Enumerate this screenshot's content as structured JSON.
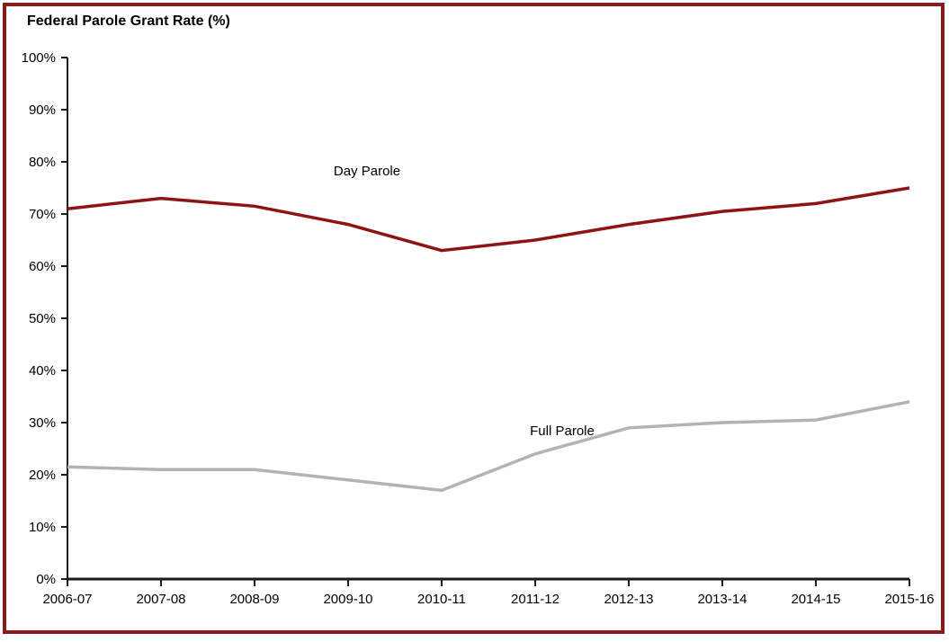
{
  "title": "Federal Parole Grant Rate (%)",
  "colors": {
    "frame_border": "#8B1A1A",
    "axis": "#1a1a1a",
    "text": "#000000",
    "day_parole_line": "#8E1414",
    "full_parole_line": "#B3B3B3"
  },
  "chart_data": {
    "type": "line",
    "title": "Federal Parole Grant Rate (%)",
    "xlabel": "",
    "ylabel": "Federal Parole Grant Rate (%)",
    "categories": [
      "2006-07",
      "2007-08",
      "2008-09",
      "2009-10",
      "2010-11",
      "2011-12",
      "2012-13",
      "2013-14",
      "2014-15",
      "2015-16"
    ],
    "series": [
      {
        "name": "Day Parole",
        "color": "#8E1414",
        "values": [
          71,
          73,
          71.5,
          68,
          63,
          65,
          68,
          70.5,
          72,
          75
        ]
      },
      {
        "name": "Full Parole",
        "color": "#B3B3B3",
        "values": [
          21.5,
          21,
          21,
          19,
          17,
          24,
          29,
          30,
          30.5,
          34
        ]
      }
    ],
    "ylim": [
      0,
      100
    ],
    "ytick_step": 10,
    "ytick_suffix": "%",
    "grid": false,
    "legend": "inline-labels",
    "annotations": [
      {
        "text": "Day Parole",
        "series": 0
      },
      {
        "text": "Full Parole",
        "series": 1
      }
    ]
  }
}
